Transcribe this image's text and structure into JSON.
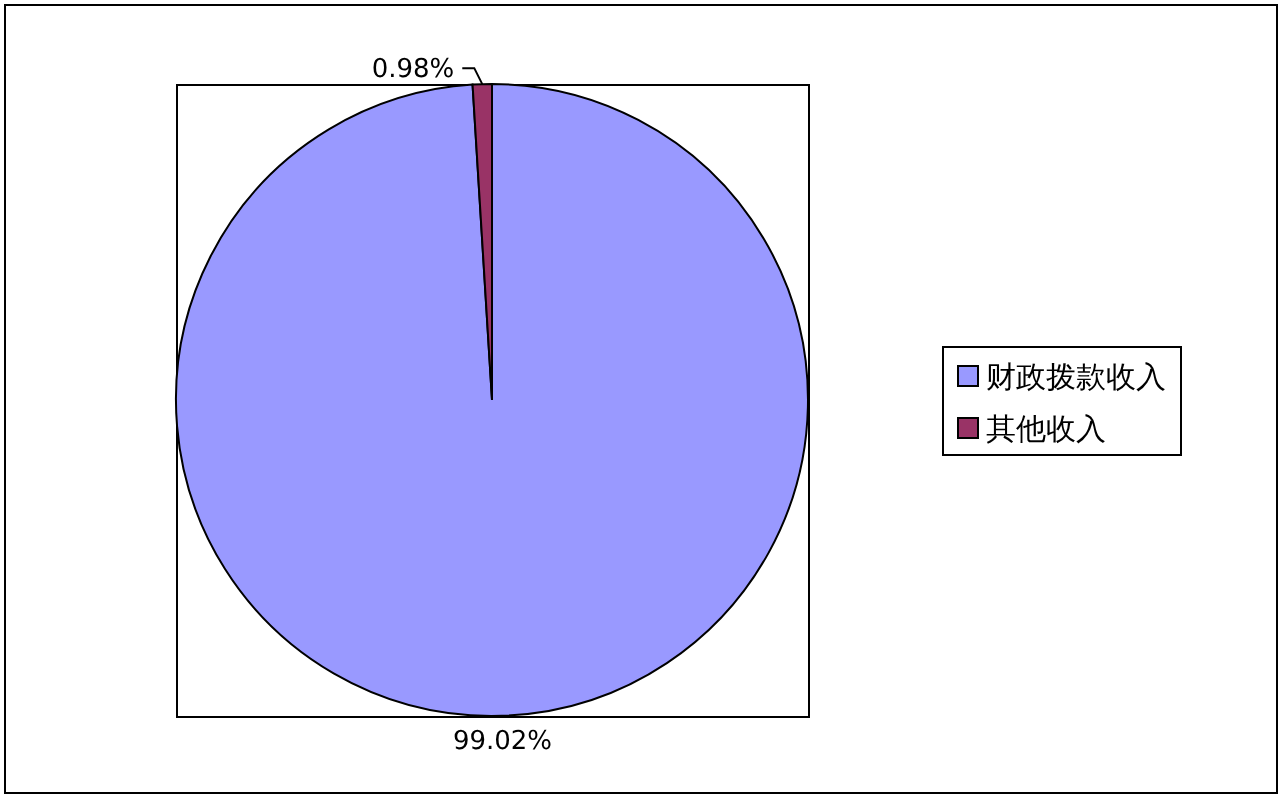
{
  "chart_data": {
    "type": "pie",
    "categories": [
      "财政拨款收入",
      "其他收入"
    ],
    "values": [
      99.02,
      0.98
    ],
    "colors": [
      "#9999ff",
      "#993366"
    ],
    "value_labels": [
      "99.02%",
      "0.98%"
    ],
    "legend": "right"
  }
}
